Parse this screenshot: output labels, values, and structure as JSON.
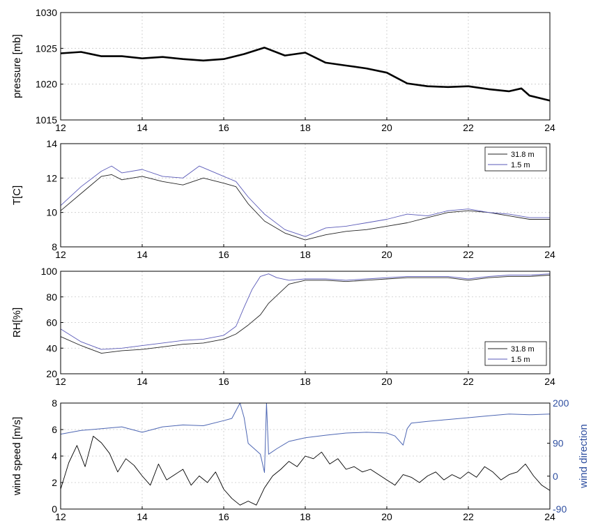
{
  "chart_data": [
    {
      "type": "line",
      "xlim": [
        12,
        24
      ],
      "xticks": [
        "12",
        "14",
        "16",
        "18",
        "20",
        "22",
        "24"
      ],
      "ylabel": "pressure [mb]",
      "ylim": [
        1015,
        1030
      ],
      "yticks": [
        "1015",
        "1020",
        "1025",
        "1030"
      ],
      "grid": true,
      "series": [
        {
          "color": "#000000",
          "x": [
            12,
            12.5,
            13,
            13.5,
            14,
            14.5,
            15,
            15.5,
            16,
            16.5,
            17,
            17.5,
            18,
            18.5,
            19,
            19.5,
            20,
            20.5,
            21,
            21.5,
            22,
            22.5,
            23,
            23.3,
            23.5,
            24
          ],
          "y": [
            1024.3,
            1024.5,
            1023.9,
            1023.9,
            1023.6,
            1023.8,
            1023.5,
            1023.3,
            1023.5,
            1024.2,
            1025.1,
            1024.0,
            1024.4,
            1023.0,
            1022.6,
            1022.2,
            1021.6,
            1020.1,
            1019.7,
            1019.6,
            1019.7,
            1019.3,
            1019.0,
            1019.4,
            1018.4,
            1017.7
          ]
        }
      ]
    },
    {
      "type": "line",
      "xlim": [
        12,
        24
      ],
      "xticks": [
        "12",
        "14",
        "16",
        "18",
        "20",
        "22",
        "24"
      ],
      "ylabel": "T[C]",
      "ylim": [
        8,
        14
      ],
      "yticks": [
        "8",
        "10",
        "12",
        "14"
      ],
      "grid": true,
      "legend_position": "top-right",
      "series": [
        {
          "name": "31.8 m",
          "color": "#222222",
          "x": [
            12,
            12.5,
            13,
            13.25,
            13.5,
            14,
            14.5,
            15,
            15.5,
            16,
            16.3,
            16.6,
            17,
            17.5,
            18,
            18.5,
            19,
            19.5,
            20,
            20.5,
            21,
            21.5,
            22,
            22.5,
            23,
            23.5,
            24
          ],
          "y": [
            10.1,
            11.1,
            12.1,
            12.2,
            11.9,
            12.1,
            11.8,
            11.6,
            12.0,
            11.7,
            11.5,
            10.5,
            9.5,
            8.8,
            8.4,
            8.7,
            8.9,
            9.0,
            9.2,
            9.4,
            9.7,
            10.0,
            10.1,
            10.0,
            9.8,
            9.6,
            9.6
          ]
        },
        {
          "name": "1.5 m",
          "color": "#5a5ab8",
          "x": [
            12,
            12.5,
            13,
            13.25,
            13.5,
            14,
            14.5,
            15,
            15.4,
            16,
            16.3,
            16.6,
            17,
            17.5,
            18,
            18.5,
            19,
            19.5,
            20,
            20.5,
            21,
            21.5,
            22,
            22.5,
            23,
            23.5,
            24
          ],
          "y": [
            10.4,
            11.5,
            12.4,
            12.7,
            12.3,
            12.5,
            12.1,
            12.0,
            12.7,
            12.1,
            11.8,
            10.9,
            9.9,
            9.0,
            8.6,
            9.1,
            9.2,
            9.4,
            9.6,
            9.9,
            9.8,
            10.1,
            10.2,
            10.0,
            9.9,
            9.7,
            9.7
          ]
        }
      ]
    },
    {
      "type": "line",
      "xlim": [
        12,
        24
      ],
      "xticks": [
        "12",
        "14",
        "16",
        "18",
        "20",
        "22",
        "24"
      ],
      "ylabel": "RH[%]",
      "ylim": [
        20,
        100
      ],
      "yticks": [
        "20",
        "40",
        "60",
        "80",
        "100"
      ],
      "grid": true,
      "legend_position": "bottom-right",
      "series": [
        {
          "name": "31.8 m",
          "color": "#222222",
          "x": [
            12,
            12.5,
            13,
            13.5,
            14,
            14.5,
            15,
            15.5,
            16,
            16.3,
            16.6,
            16.9,
            17.1,
            17.4,
            17.6,
            18,
            18.5,
            19,
            19.5,
            20,
            20.5,
            21,
            21.5,
            22,
            22.5,
            23,
            23.5,
            24
          ],
          "y": [
            49,
            42,
            36,
            38,
            39,
            41,
            43,
            44,
            47,
            51,
            58,
            66,
            75,
            84,
            90,
            93,
            93,
            92,
            93,
            94,
            95,
            95,
            95,
            93,
            95,
            96,
            96,
            97
          ]
        },
        {
          "name": "1.5 m",
          "color": "#5a5ab8",
          "x": [
            12,
            12.5,
            13,
            13.5,
            14,
            14.5,
            15,
            15.5,
            16,
            16.3,
            16.5,
            16.7,
            16.9,
            17.1,
            17.3,
            17.6,
            18,
            18.5,
            19,
            19.5,
            20,
            20.5,
            21,
            21.5,
            22,
            22.5,
            23,
            23.5,
            24
          ],
          "y": [
            55,
            45,
            39,
            40,
            42,
            44,
            46,
            47,
            50,
            57,
            72,
            86,
            96,
            98,
            95,
            93,
            94,
            94,
            93,
            94,
            95,
            96,
            96,
            96,
            94,
            96,
            97,
            97,
            98
          ]
        }
      ]
    },
    {
      "type": "line",
      "xlim": [
        12,
        24
      ],
      "xticks": [
        "12",
        "14",
        "16",
        "18",
        "20",
        "22",
        "24"
      ],
      "ylabel": "wind speed [m/s]",
      "ylim": [
        0,
        8
      ],
      "yticks": [
        "0",
        "2",
        "4",
        "6",
        "8"
      ],
      "y2label": "wind direction",
      "y2lim": [
        -90,
        200
      ],
      "y2ticks": [
        "-90",
        "0",
        "90",
        "200"
      ],
      "grid": true,
      "series": [
        {
          "name": "wind speed",
          "color": "#000000",
          "axis": "left",
          "x": [
            12,
            12.2,
            12.4,
            12.6,
            12.8,
            13,
            13.2,
            13.4,
            13.6,
            13.8,
            14,
            14.2,
            14.4,
            14.6,
            14.8,
            15,
            15.2,
            15.4,
            15.6,
            15.8,
            16,
            16.2,
            16.4,
            16.6,
            16.8,
            17,
            17.2,
            17.4,
            17.6,
            17.8,
            18,
            18.2,
            18.4,
            18.6,
            18.8,
            19,
            19.2,
            19.4,
            19.6,
            19.8,
            20,
            20.2,
            20.4,
            20.6,
            20.8,
            21,
            21.2,
            21.4,
            21.6,
            21.8,
            22,
            22.2,
            22.4,
            22.6,
            22.8,
            23,
            23.2,
            23.4,
            23.6,
            23.8,
            24
          ],
          "y": [
            1.5,
            3.5,
            4.8,
            3.2,
            5.5,
            5.0,
            4.2,
            2.8,
            3.8,
            3.3,
            2.5,
            1.8,
            3.4,
            2.2,
            2.6,
            3.0,
            1.8,
            2.5,
            2.0,
            2.8,
            1.5,
            0.8,
            0.3,
            0.6,
            0.3,
            1.6,
            2.5,
            3.0,
            3.6,
            3.2,
            4.0,
            3.8,
            4.3,
            3.4,
            3.8,
            3.0,
            3.2,
            2.8,
            3.0,
            2.6,
            2.2,
            1.8,
            2.6,
            2.4,
            2.0,
            2.5,
            2.8,
            2.2,
            2.6,
            2.3,
            2.8,
            2.4,
            3.2,
            2.8,
            2.2,
            2.6,
            2.8,
            3.4,
            2.5,
            1.8,
            1.4
          ]
        },
        {
          "name": "wind direction",
          "color": "#4d66b3",
          "axis": "right",
          "x": [
            12,
            12.5,
            13,
            13.5,
            14,
            14.5,
            15,
            15.5,
            16,
            16.2,
            16.4,
            16.5,
            16.6,
            16.8,
            16.9,
            17.0,
            17.05,
            17.1,
            17.3,
            17.6,
            18,
            18.5,
            19,
            19.5,
            20,
            20.2,
            20.4,
            20.5,
            20.6,
            21,
            21.5,
            22,
            22.5,
            23,
            23.5,
            24
          ],
          "y": [
            115,
            125,
            130,
            135,
            120,
            135,
            140,
            138,
            152,
            158,
            200,
            160,
            90,
            70,
            60,
            10,
            200,
            60,
            75,
            95,
            105,
            112,
            118,
            120,
            118,
            110,
            85,
            130,
            145,
            150,
            155,
            160,
            165,
            170,
            168,
            170
          ]
        }
      ]
    }
  ]
}
